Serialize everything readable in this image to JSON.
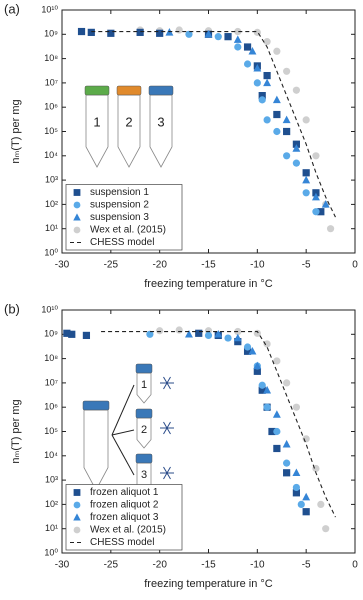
{
  "chart_data": [
    {
      "type": "scatter",
      "panel_label": "(a)",
      "xlabel": "freezing temperature in °C",
      "ylabel": "nₘ(T) per mg",
      "log_y": true,
      "legend": "lower left",
      "xlim": [
        -30,
        0
      ],
      "xticks": [
        -30,
        -25,
        -20,
        -15,
        -10,
        -5,
        0
      ],
      "ylim": [
        1,
        10000000000
      ],
      "yticks": [
        {
          "value": 1,
          "label": "10⁰"
        },
        {
          "value": 10,
          "label": "10¹"
        },
        {
          "value": 100,
          "label": "10²"
        },
        {
          "value": 1000,
          "label": "10³"
        },
        {
          "value": 10000,
          "label": "10⁴"
        },
        {
          "value": 100000,
          "label": "10⁵"
        },
        {
          "value": 1000000,
          "label": "10⁶"
        },
        {
          "value": 10000000,
          "label": "10⁷"
        },
        {
          "value": 100000000,
          "label": "10⁸"
        },
        {
          "value": 1000000000,
          "label": "10⁹"
        },
        {
          "value": 10000000000,
          "label": "10¹⁰"
        }
      ],
      "annotations": [
        "1",
        "2",
        "3"
      ],
      "series": [
        {
          "name": "suspension 1",
          "marker": "square",
          "color": "#1f4f8f",
          "x": [
            -28,
            -27,
            -25,
            -22,
            -20,
            -15,
            -13,
            -11,
            -10,
            -9.5,
            -9,
            -8,
            -7,
            -6,
            -5,
            -4,
            -3.5
          ],
          "values": [
            1300000000,
            1200000000,
            1100000000,
            1200000000,
            1100000000,
            1000000000,
            800000000,
            300000000,
            50000000,
            3000000,
            20000000,
            500000,
            100000,
            30000,
            2000,
            300,
            50
          ]
        },
        {
          "name": "suspension 2",
          "marker": "circle",
          "color": "#5aaae8",
          "x": [
            -17,
            -14,
            -12,
            -11,
            -10,
            -9.5,
            -9,
            -8,
            -7,
            -6,
            -5,
            -4
          ],
          "values": [
            1000000000,
            800000000,
            300000000,
            60000000,
            10000000,
            2000000,
            300000,
            100000,
            10000,
            5000,
            300,
            50
          ]
        },
        {
          "name": "suspension 3",
          "marker": "triangle",
          "color": "#3585d6",
          "x": [
            -19,
            -15,
            -12,
            -10.5,
            -10,
            -9,
            -8,
            -7,
            -6,
            -5,
            -4,
            -3
          ],
          "values": [
            1200000000,
            1000000000,
            600000000,
            200000000,
            40000000,
            10000000,
            2000000,
            300000,
            20000,
            1000,
            200,
            100
          ]
        },
        {
          "name": "Wex et al. (2015)",
          "marker": "circle",
          "color": "#cfcfcf",
          "x": [
            -22,
            -20,
            -18,
            -15,
            -12,
            -10,
            -9,
            -8,
            -7,
            -6,
            -5,
            -4,
            -3,
            -2.5
          ],
          "values": [
            1500000000,
            1400000000,
            1500000000,
            1400000000,
            1300000000,
            1200000000,
            500000000,
            200000000,
            30000000,
            5000000,
            300000,
            10000,
            100,
            10
          ]
        },
        {
          "name": "CHESS model",
          "marker": "line",
          "color": "#222222",
          "x": [
            -27,
            -10,
            -9,
            -8,
            -7,
            -6,
            -5,
            -4,
            -3,
            -2
          ],
          "values": [
            1300000000,
            1300000000,
            300000000,
            30000000,
            3000000,
            300000,
            30000,
            2000,
            200,
            30
          ]
        }
      ]
    },
    {
      "type": "scatter",
      "panel_label": "(b)",
      "xlabel": "freezing temperature in °C",
      "ylabel": "nₘ(T) per mg",
      "log_y": true,
      "legend": "lower left",
      "xlim": [
        -30,
        0
      ],
      "xticks": [
        -30,
        -25,
        -20,
        -15,
        -10,
        -5,
        0
      ],
      "ylim": [
        1,
        10000000000
      ],
      "yticks": [
        {
          "value": 1,
          "label": "10⁰"
        },
        {
          "value": 10,
          "label": "10¹"
        },
        {
          "value": 100,
          "label": "10²"
        },
        {
          "value": 1000,
          "label": "10³"
        },
        {
          "value": 10000,
          "label": "10⁴"
        },
        {
          "value": 100000,
          "label": "10⁵"
        },
        {
          "value": 1000000,
          "label": "10⁶"
        },
        {
          "value": 10000000,
          "label": "10⁷"
        },
        {
          "value": 100000000,
          "label": "10⁸"
        },
        {
          "value": 1000000000,
          "label": "10⁹"
        },
        {
          "value": 10000000000,
          "label": "10¹⁰"
        }
      ],
      "annotations": [
        "1",
        "2",
        "3"
      ],
      "series": [
        {
          "name": "frozen aliquot 1",
          "marker": "square",
          "color": "#1f4f8f",
          "x": [
            -29.5,
            -29,
            -27.5,
            -16,
            -14,
            -12,
            -11,
            -10,
            -9.5,
            -9,
            -8.5,
            -8,
            -7,
            -6,
            -5
          ],
          "values": [
            1100000000,
            1000000000,
            900000000,
            1100000000,
            900000000,
            500000000,
            200000000,
            30000000,
            5000000,
            1000000,
            100000,
            20000,
            2000,
            300,
            50
          ]
        },
        {
          "name": "frozen aliquot 2",
          "marker": "circle",
          "color": "#5aaae8",
          "x": [
            -21,
            -15,
            -13,
            -11,
            -10,
            -9.5,
            -9,
            -8,
            -7,
            -6,
            -5.5
          ],
          "values": [
            1000000000,
            900000000,
            700000000,
            300000000,
            50000000,
            8000000,
            1000000,
            100000,
            5000,
            500,
            100
          ]
        },
        {
          "name": "frozen aliquot 3",
          "marker": "triangle",
          "color": "#3585d6",
          "x": [
            -17,
            -14,
            -12,
            -10.5,
            -10,
            -9,
            -8,
            -7,
            -6,
            -5
          ],
          "values": [
            1000000000,
            1000000000,
            700000000,
            200000000,
            50000000,
            5000000,
            500000,
            30000,
            2000,
            200
          ]
        },
        {
          "name": "Wex et al. (2015)",
          "marker": "circle",
          "color": "#cfcfcf",
          "x": [
            -20,
            -18,
            -15,
            -12,
            -10,
            -9,
            -8,
            -7,
            -6,
            -5,
            -4,
            -3.5,
            -3
          ],
          "values": [
            1400000000,
            1500000000,
            1400000000,
            1300000000,
            1100000000,
            400000000,
            80000000,
            10000000,
            1000000,
            50000,
            3000,
            100,
            10
          ]
        },
        {
          "name": "CHESS model",
          "marker": "line",
          "color": "#222222",
          "x": [
            -26,
            -10,
            -9,
            -8,
            -7,
            -6,
            -5,
            -4,
            -3,
            -2
          ],
          "values": [
            1300000000,
            1300000000,
            300000000,
            30000000,
            3000000,
            300000,
            30000,
            2000,
            200,
            30
          ]
        }
      ]
    }
  ]
}
